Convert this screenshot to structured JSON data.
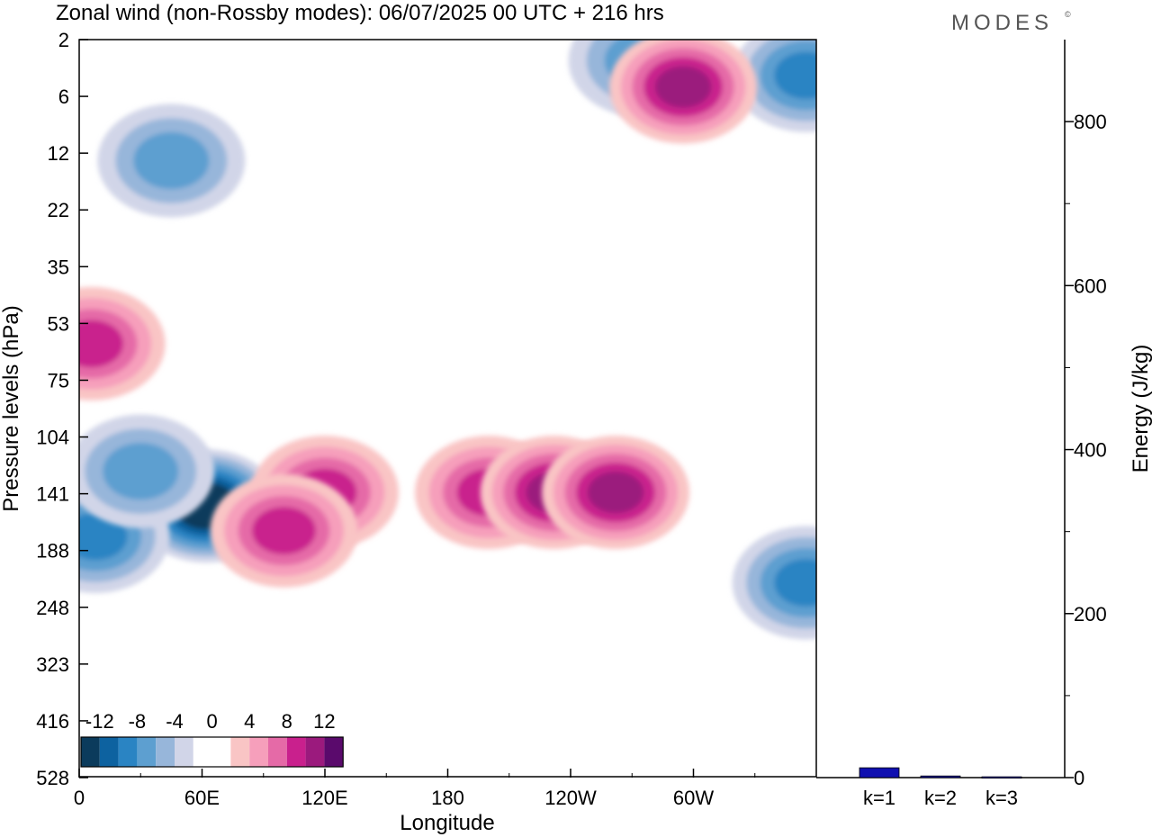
{
  "title": "Zonal wind (non-Rossby modes):  06/07/2025  00 UTC  + 216 hrs",
  "brand": "MODES",
  "brand_mark": "©",
  "chart_data": [
    {
      "type": "heatmap",
      "xlabel": "Longitude",
      "ylabel": "Pressure levels (hPa)",
      "x_ticks": [
        "0",
        "60E",
        "120E",
        "180",
        "120W",
        "60W"
      ],
      "x_tick_degrees": [
        0,
        60,
        120,
        180,
        240,
        300
      ],
      "xlim": [
        0,
        360
      ],
      "y_ticks": [
        "2",
        "6",
        "12",
        "22",
        "35",
        "53",
        "75",
        "104",
        "141",
        "188",
        "248",
        "323",
        "416",
        "528"
      ],
      "colorbar": {
        "labels": [
          "-12",
          "-8",
          "-4",
          "0",
          "4",
          "8",
          "12"
        ],
        "colors": [
          "#0b3b5c",
          "#0d62a0",
          "#2a84c3",
          "#5d9fd0",
          "#97b6da",
          "#d1d5e8",
          "#ffffff",
          "#ffffff",
          "#f9c5c5",
          "#f69fbb",
          "#e56aa7",
          "#c9208d",
          "#9b1a7d",
          "#5a0a6c"
        ]
      },
      "regions": [
        {
          "name": "strong easterly jet",
          "lon": 62,
          "level": 150,
          "value": -14
        },
        {
          "name": "easterly",
          "lon": 8,
          "level": 175,
          "value": -8
        },
        {
          "name": "easterly",
          "lon": 30,
          "level": 125,
          "value": -6
        },
        {
          "name": "easterly",
          "lon": 355,
          "level": 220,
          "value": -7
        },
        {
          "name": "easterly",
          "lon": 45,
          "level": 13,
          "value": -5
        },
        {
          "name": "easterly",
          "lon": 355,
          "level": 4,
          "value": -7
        },
        {
          "name": "easterly",
          "lon": 275,
          "level": 3,
          "value": -5
        },
        {
          "name": "westerly",
          "lon": 120,
          "level": 140,
          "value": 7
        },
        {
          "name": "westerly",
          "lon": 200,
          "level": 140,
          "value": 8
        },
        {
          "name": "westerly",
          "lon": 232,
          "level": 140,
          "value": 10
        },
        {
          "name": "westerly",
          "lon": 262,
          "level": 140,
          "value": 10
        },
        {
          "name": "westerly",
          "lon": 295,
          "level": 5,
          "value": 9
        },
        {
          "name": "westerly",
          "lon": 6,
          "level": 60,
          "value": 7
        },
        {
          "name": "westerly",
          "lon": 100,
          "level": 170,
          "value": 7
        }
      ]
    },
    {
      "type": "bar",
      "ylabel": "Energy (J/kg)",
      "categories": [
        "k=1",
        "k=2",
        "k=3"
      ],
      "values": [
        12,
        2,
        1
      ],
      "ylim": [
        0,
        900
      ],
      "y_ticks": [
        "0",
        "200",
        "400",
        "600",
        "800"
      ],
      "bar_color": "#1010b0"
    }
  ]
}
